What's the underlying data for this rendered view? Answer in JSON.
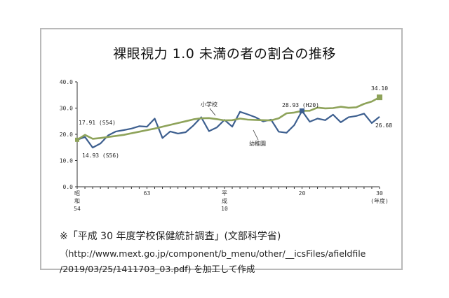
{
  "chart_data": {
    "type": "line",
    "title": "裸眼視力 1.0 未満の者の割合の推移",
    "x": [
      54,
      55,
      56,
      57,
      58,
      59,
      60,
      61,
      62,
      63,
      1,
      2,
      3,
      4,
      5,
      6,
      7,
      8,
      9,
      10,
      11,
      12,
      13,
      14,
      15,
      16,
      17,
      18,
      19,
      20,
      21,
      22,
      23,
      24,
      25,
      26,
      27,
      28,
      29,
      30
    ],
    "ylim": [
      0,
      40
    ],
    "yticks": [
      "0.0",
      "10.0",
      "20.0",
      "30.0",
      "40.0"
    ],
    "grid": false,
    "series": [
      {
        "name": "小学校",
        "color": "#3d5f8f",
        "values": [
          17.91,
          19.0,
          14.93,
          16.5,
          19.6,
          21.1,
          21.6,
          22.2,
          23.1,
          22.9,
          26.0,
          18.6,
          21.1,
          20.3,
          20.8,
          23.4,
          26.5,
          21.2,
          22.6,
          25.5,
          22.9,
          28.6,
          27.6,
          26.5,
          24.9,
          25.6,
          21.0,
          20.6,
          23.5,
          28.93,
          24.8,
          26.0,
          25.4,
          27.5,
          24.6,
          26.5,
          27.0,
          27.9,
          24.3,
          26.68
        ]
      },
      {
        "name": "幼稚園",
        "color": "#8ea35a",
        "values": [
          17.91,
          19.8,
          18.3,
          18.6,
          19.0,
          19.4,
          19.8,
          20.4,
          21.0,
          21.6,
          22.2,
          22.9,
          23.6,
          24.3,
          25.0,
          25.7,
          26.1,
          26.2,
          25.8,
          25.3,
          25.4,
          26.0,
          25.6,
          25.5,
          25.4,
          25.3,
          26.1,
          28.0,
          28.3,
          28.93,
          29.0,
          30.2,
          29.9,
          30.0,
          30.5,
          30.1,
          30.3,
          31.6,
          32.5,
          34.1
        ]
      }
    ],
    "xticks": [
      {
        "x": 54,
        "label": [
          "昭",
          "和",
          "54"
        ]
      },
      {
        "x": 63,
        "label": [
          "63"
        ]
      },
      {
        "x": 10,
        "label": [
          "平",
          "成",
          "10"
        ]
      },
      {
        "x": 20,
        "label": [
          "20"
        ]
      },
      {
        "x": 30,
        "label": [
          "30",
          "(年度)"
        ]
      }
    ],
    "annotations": [
      {
        "text": "17.91 (S54)"
      },
      {
        "text": "14.93 (S56)"
      },
      {
        "text": "28.93 (H20)"
      },
      {
        "text": "34.10"
      },
      {
        "text": "26.68"
      },
      {
        "text": "小学校"
      },
      {
        "text": "幼稚園"
      }
    ]
  },
  "source": {
    "note": "※「平成 30 年度学校保健統計調査」(文部科学省)",
    "url": "（http://www.mext.go.jp/component/b_menu/other/__icsFiles/afieldfile",
    "tail": "/2019/03/25/1411703_03.pdf) を加工して作成"
  }
}
